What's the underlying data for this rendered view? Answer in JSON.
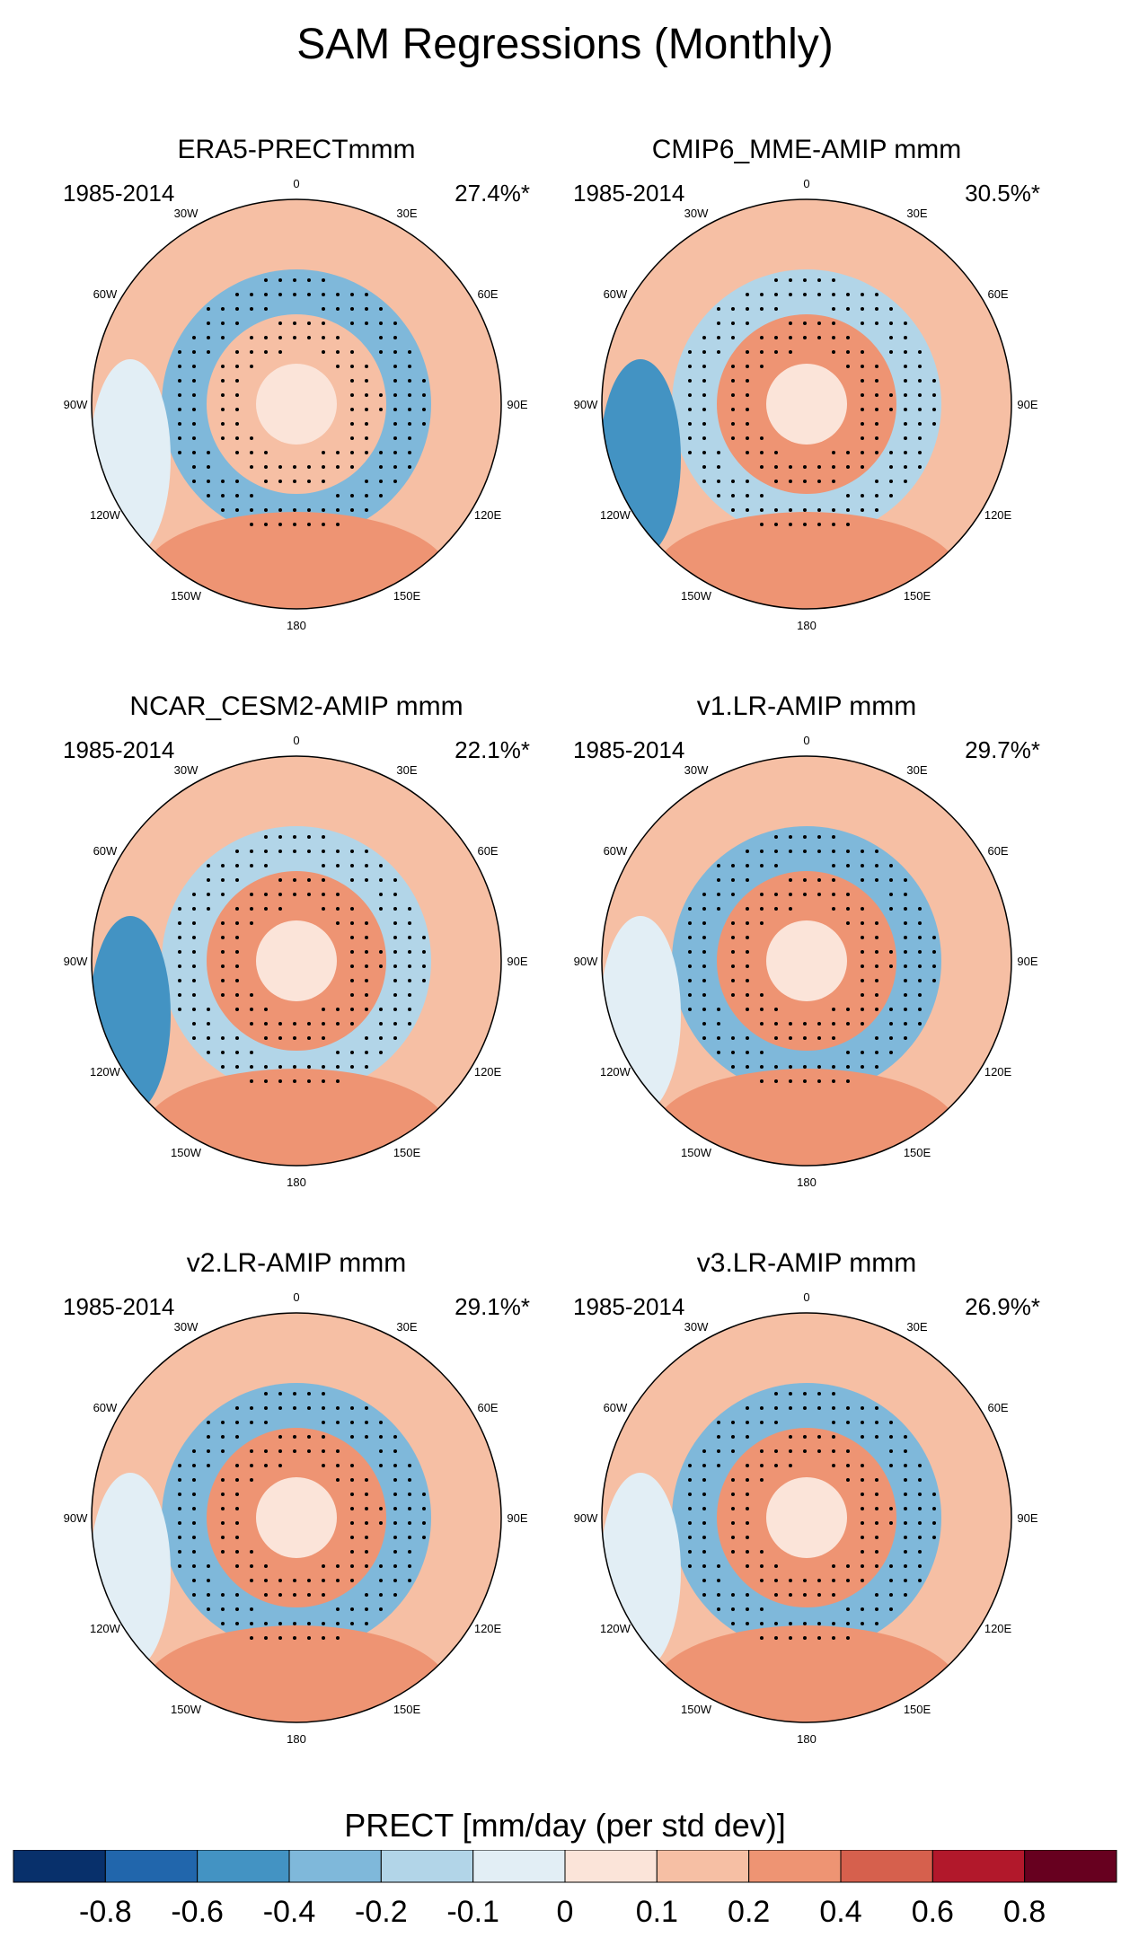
{
  "title": "SAM Regressions (Monthly)",
  "panels": [
    {
      "title": "ERA5-PRECTmmm",
      "period": "1985-2014",
      "percent": "27.4%*",
      "pattern": {
        "inner": 0.18,
        "ring": -0.22,
        "outer": 0.22,
        "pacific": -0.05
      }
    },
    {
      "title": "CMIP6_MME-AMIP  mmm",
      "period": "1985-2014",
      "percent": "30.5%*",
      "pattern": {
        "inner": 0.2,
        "ring": -0.2,
        "outer": 0.25,
        "pacific": -0.45
      }
    },
    {
      "title": "NCAR_CESM2-AMIP  mmm",
      "period": "1985-2014",
      "percent": "22.1%*",
      "pattern": {
        "inner": 0.2,
        "ring": -0.15,
        "outer": 0.3,
        "pacific": -0.5
      }
    },
    {
      "title": "v1.LR-AMIP  mmm",
      "period": "1985-2014",
      "percent": "29.7%*",
      "pattern": {
        "inner": 0.22,
        "ring": -0.3,
        "outer": 0.3,
        "pacific": -0.1
      }
    },
    {
      "title": "v2.LR-AMIP  mmm",
      "period": "1985-2014",
      "percent": "29.1%*",
      "pattern": {
        "inner": 0.22,
        "ring": -0.25,
        "outer": 0.25,
        "pacific": -0.1
      }
    },
    {
      "title": "v3.LR-AMIP  mmm",
      "period": "1985-2014",
      "percent": "26.9%*",
      "pattern": {
        "inner": 0.22,
        "ring": -0.3,
        "outer": 0.28,
        "pacific": -0.1
      }
    }
  ],
  "longitude_labels": [
    "0",
    "30E",
    "60E",
    "90E",
    "120E",
    "150E",
    "180",
    "150W",
    "120W",
    "90W",
    "60W",
    "30W"
  ],
  "colorbar": {
    "title": "PRECT [mm/day (per std dev)]",
    "colors": [
      "#08306b",
      "#2166ac",
      "#4393c3",
      "#7fb8da",
      "#b2d5e8",
      "#e2eef5",
      "#fbe4d9",
      "#f6bfa4",
      "#ee9473",
      "#d6604d",
      "#b2182b",
      "#67001f"
    ],
    "tick_labels": [
      "-0.8",
      "-0.6",
      "-0.4",
      "-0.2",
      "-0.1",
      "0",
      "0.1",
      "0.2",
      "0.4",
      "0.6",
      "0.8"
    ]
  }
}
